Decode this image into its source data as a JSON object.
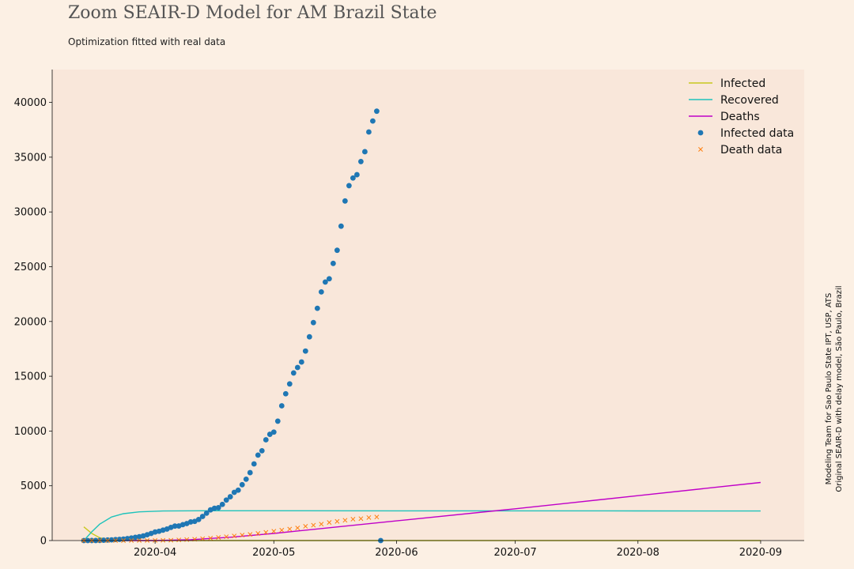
{
  "colors": {
    "page_background": "#fcf0e4",
    "plot_background": "#f9e7da",
    "infected": "#c8c81e",
    "recovered": "#1fc3bb",
    "deaths": "#c000c8",
    "infected_data": "#1f77b4",
    "death_data": "#ff7f0e"
  },
  "chart_data": {
    "type": "line",
    "title": "Zoom SEAIR-D Model for AM Brazil State",
    "subtitle": "Optimization fitted with real data",
    "credits": [
      "Modeling Team for Sao Paulo State IPT, USP, ATS",
      "Original SEAIR-D with delay model, São Paulo, Brazil"
    ],
    "x_axis": {
      "type": "date",
      "range": [
        "2020-03-06",
        "2020-09-12"
      ],
      "ticks": [
        "2020-04",
        "2020-05",
        "2020-06",
        "2020-07",
        "2020-08",
        "2020-09"
      ]
    },
    "y_axis": {
      "range": [
        0,
        43000
      ],
      "ticks": [
        0,
        5000,
        10000,
        15000,
        20000,
        25000,
        30000,
        35000,
        40000
      ]
    },
    "grid": false,
    "legend_position": "top-right",
    "series": [
      {
        "name": "Infected",
        "kind": "line",
        "x": [
          "2020-03-14",
          "2020-03-16",
          "2020-03-18",
          "2020-03-21",
          "2020-03-25",
          "2020-04-01",
          "2020-05-01",
          "2020-06-01",
          "2020-07-01",
          "2020-08-01",
          "2020-09-01"
        ],
        "y": [
          1250,
          650,
          250,
          60,
          10,
          0,
          0,
          0,
          0,
          0,
          0
        ]
      },
      {
        "name": "Recovered",
        "kind": "line",
        "x": [
          "2020-03-14",
          "2020-03-16",
          "2020-03-18",
          "2020-03-21",
          "2020-03-24",
          "2020-03-28",
          "2020-04-03",
          "2020-04-15",
          "2020-05-01",
          "2020-06-01",
          "2020-07-01",
          "2020-08-01",
          "2020-09-01"
        ],
        "y": [
          0,
          800,
          1500,
          2150,
          2450,
          2620,
          2700,
          2720,
          2720,
          2715,
          2710,
          2705,
          2700
        ]
      },
      {
        "name": "Deaths",
        "kind": "line",
        "x": [
          "2020-03-14",
          "2020-04-01",
          "2020-04-10",
          "2020-04-20",
          "2020-05-01",
          "2020-06-01",
          "2020-07-01",
          "2020-08-01",
          "2020-09-01"
        ],
        "y": [
          0,
          0,
          80,
          300,
          650,
          1800,
          2900,
          4100,
          5300
        ]
      },
      {
        "name": "Infected data",
        "kind": "scatter",
        "marker": "circle",
        "x": [
          "2020-03-14",
          "2020-03-15",
          "2020-03-16",
          "2020-03-17",
          "2020-03-18",
          "2020-03-19",
          "2020-03-20",
          "2020-03-21",
          "2020-03-22",
          "2020-03-23",
          "2020-03-24",
          "2020-03-25",
          "2020-03-26",
          "2020-03-27",
          "2020-03-28",
          "2020-03-29",
          "2020-03-30",
          "2020-03-31",
          "2020-04-01",
          "2020-04-02",
          "2020-04-03",
          "2020-04-04",
          "2020-04-05",
          "2020-04-06",
          "2020-04-07",
          "2020-04-08",
          "2020-04-09",
          "2020-04-10",
          "2020-04-11",
          "2020-04-12",
          "2020-04-13",
          "2020-04-14",
          "2020-04-15",
          "2020-04-16",
          "2020-04-17",
          "2020-04-18",
          "2020-04-19",
          "2020-04-20",
          "2020-04-21",
          "2020-04-22",
          "2020-04-23",
          "2020-04-24",
          "2020-04-25",
          "2020-04-26",
          "2020-04-27",
          "2020-04-28",
          "2020-04-29",
          "2020-04-30",
          "2020-05-01",
          "2020-05-02",
          "2020-05-03",
          "2020-05-04",
          "2020-05-05",
          "2020-05-06",
          "2020-05-07",
          "2020-05-08",
          "2020-05-09",
          "2020-05-10",
          "2020-05-11",
          "2020-05-12",
          "2020-05-13",
          "2020-05-14",
          "2020-05-15",
          "2020-05-16",
          "2020-05-17",
          "2020-05-18",
          "2020-05-19",
          "2020-05-20",
          "2020-05-21",
          "2020-05-22",
          "2020-05-23",
          "2020-05-24",
          "2020-05-25",
          "2020-05-26",
          "2020-05-27",
          "2020-05-28"
        ],
        "y": [
          1,
          2,
          3,
          5,
          15,
          30,
          50,
          65,
          90,
          110,
          130,
          180,
          230,
          300,
          350,
          420,
          530,
          650,
          780,
          850,
          950,
          1050,
          1200,
          1320,
          1330,
          1450,
          1550,
          1700,
          1750,
          1920,
          2200,
          2500,
          2800,
          2950,
          3000,
          3300,
          3700,
          4000,
          4400,
          4600,
          5100,
          5600,
          6200,
          7000,
          7800,
          8200,
          9200,
          9700,
          9900,
          10900,
          12300,
          13400,
          14300,
          15300,
          15800,
          16300,
          17300,
          18600,
          19900,
          21200,
          22700,
          23600,
          23900,
          25300,
          26500,
          28700,
          31000,
          32400,
          33100,
          33400,
          34600,
          35500,
          37300,
          38300,
          39200,
          0
        ]
      },
      {
        "name": "Death data",
        "kind": "scatter",
        "marker": "x",
        "x": [
          "2020-03-14",
          "2020-03-16",
          "2020-03-18",
          "2020-03-20",
          "2020-03-22",
          "2020-03-24",
          "2020-03-26",
          "2020-03-28",
          "2020-03-30",
          "2020-04-01",
          "2020-04-03",
          "2020-04-05",
          "2020-04-07",
          "2020-04-09",
          "2020-04-11",
          "2020-04-13",
          "2020-04-15",
          "2020-04-17",
          "2020-04-19",
          "2020-04-21",
          "2020-04-23",
          "2020-04-25",
          "2020-04-27",
          "2020-04-29",
          "2020-05-01",
          "2020-05-03",
          "2020-05-05",
          "2020-05-07",
          "2020-05-09",
          "2020-05-11",
          "2020-05-13",
          "2020-05-15",
          "2020-05-17",
          "2020-05-19",
          "2020-05-21",
          "2020-05-23",
          "2020-05-25",
          "2020-05-27"
        ],
        "y": [
          0,
          0,
          0,
          0,
          0,
          1,
          3,
          5,
          10,
          15,
          20,
          30,
          60,
          90,
          120,
          170,
          220,
          280,
          350,
          420,
          500,
          560,
          650,
          750,
          850,
          950,
          1050,
          1150,
          1300,
          1400,
          1500,
          1650,
          1750,
          1850,
          1950,
          2000,
          2100,
          2150
        ]
      }
    ]
  }
}
